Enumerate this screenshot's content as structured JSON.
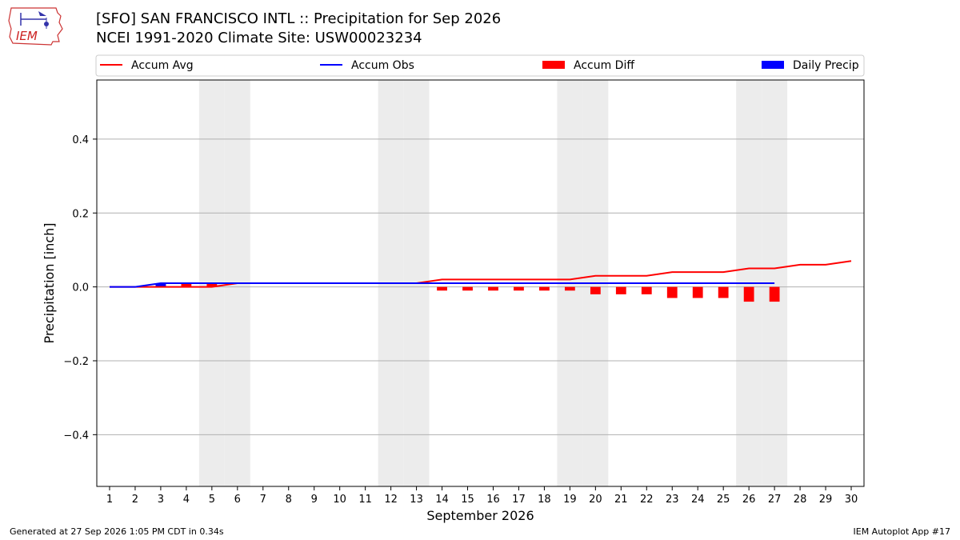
{
  "header": {
    "title_line1": "[SFO] SAN FRANCISCO INTL :: Precipitation for Sep 2026",
    "title_line2": "NCEI 1991-2020 Climate Site: USW00023234",
    "logo_text": "IEM"
  },
  "footer": {
    "generated": "Generated at 27 Sep 2026 1:05 PM CDT in 0.34s",
    "app": "IEM Autoplot App #17"
  },
  "colors": {
    "avg": "#ff0000",
    "obs": "#0000ff",
    "diff": "#ff0000",
    "daily": "#0000ff",
    "weekend": "#ececec",
    "grid": "#b0b0b0"
  },
  "chart_data": {
    "type": "line",
    "xlabel": "September 2026",
    "ylabel": "Precipitation [inch]",
    "xlim": [
      0.5,
      30.5
    ],
    "ylim": [
      -0.54,
      0.56
    ],
    "yticks": [
      -0.4,
      -0.2,
      0.0,
      0.2,
      0.4
    ],
    "ytick_labels": [
      "−0.4",
      "−0.2",
      "0.0",
      "0.2",
      "0.4"
    ],
    "days": [
      1,
      2,
      3,
      4,
      5,
      6,
      7,
      8,
      9,
      10,
      11,
      12,
      13,
      14,
      15,
      16,
      17,
      18,
      19,
      20,
      21,
      22,
      23,
      24,
      25,
      26,
      27,
      28,
      29,
      30
    ],
    "weekend_days": [
      5,
      6,
      12,
      13,
      19,
      20,
      26,
      27
    ],
    "grid": true,
    "legend": {
      "placement": "top",
      "entries": [
        {
          "label": "Accum Avg",
          "kind": "line",
          "series": "avg"
        },
        {
          "label": "Accum Obs",
          "kind": "line",
          "series": "obs"
        },
        {
          "label": "Accum Diff",
          "kind": "bar",
          "series": "diff"
        },
        {
          "label": "Daily Precip",
          "kind": "bar",
          "series": "daily"
        }
      ]
    },
    "series": [
      {
        "name": "Accum Avg",
        "kind": "line",
        "x": [
          1,
          2,
          3,
          4,
          5,
          6,
          7,
          8,
          9,
          10,
          11,
          12,
          13,
          14,
          15,
          16,
          17,
          18,
          19,
          20,
          21,
          22,
          23,
          24,
          25,
          26,
          27,
          28,
          29,
          30
        ],
        "values": [
          0,
          0,
          0,
          0,
          0,
          0.01,
          0.01,
          0.01,
          0.01,
          0.01,
          0.01,
          0.01,
          0.01,
          0.02,
          0.02,
          0.02,
          0.02,
          0.02,
          0.02,
          0.03,
          0.03,
          0.03,
          0.04,
          0.04,
          0.04,
          0.05,
          0.05,
          0.06,
          0.06,
          0.07
        ]
      },
      {
        "name": "Accum Obs",
        "kind": "line",
        "x": [
          1,
          2,
          3,
          4,
          5,
          6,
          7,
          8,
          9,
          10,
          11,
          12,
          13,
          14,
          15,
          16,
          17,
          18,
          19,
          20,
          21,
          22,
          23,
          24,
          25,
          26,
          27
        ],
        "values": [
          0,
          0,
          0.01,
          0.01,
          0.01,
          0.01,
          0.01,
          0.01,
          0.01,
          0.01,
          0.01,
          0.01,
          0.01,
          0.01,
          0.01,
          0.01,
          0.01,
          0.01,
          0.01,
          0.01,
          0.01,
          0.01,
          0.01,
          0.01,
          0.01,
          0.01,
          0.01
        ]
      },
      {
        "name": "Accum Diff",
        "kind": "bar",
        "x": [
          3,
          4,
          5,
          14,
          15,
          16,
          17,
          18,
          19,
          20,
          21,
          22,
          23,
          24,
          25,
          26,
          27
        ],
        "values": [
          0.01,
          0.01,
          0.01,
          -0.01,
          -0.01,
          -0.01,
          -0.01,
          -0.01,
          -0.01,
          -0.02,
          -0.02,
          -0.02,
          -0.03,
          -0.03,
          -0.03,
          -0.04,
          -0.04
        ]
      },
      {
        "name": "Daily Precip",
        "kind": "bar",
        "x": [
          3
        ],
        "values": [
          0.01
        ]
      }
    ]
  }
}
